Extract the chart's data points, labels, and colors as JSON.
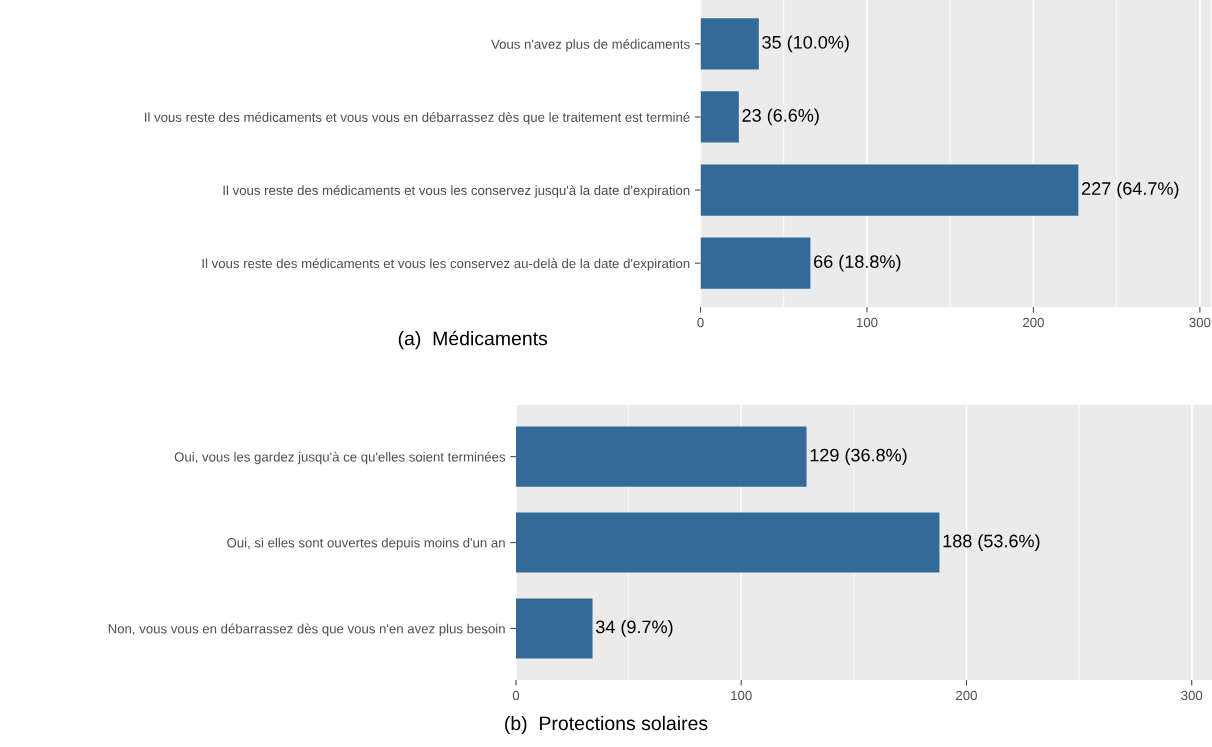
{
  "chart_data": [
    {
      "type": "bar",
      "orientation": "horizontal",
      "title": "(a)  Médicaments",
      "categories": [
        "Vous n'avez plus de médicaments",
        "Il vous reste des médicaments et vous vous en débarrassez dès que le traitement est terminé",
        "Il vous reste des médicaments et vous les conservez jusqu'à la date d'expiration",
        "Il vous reste des médicaments et vous les conservez au-delà de la date d'expiration"
      ],
      "values": [
        35,
        23,
        227,
        66
      ],
      "value_labels": [
        "35 (10.0%)",
        "23 (6.6%)",
        "227 (64.7%)",
        "66 (18.8%)"
      ],
      "color": "#336a98",
      "xlim": [
        0,
        307
      ],
      "xticks": [
        0,
        100,
        200,
        300
      ],
      "grid": "x",
      "legend": false
    },
    {
      "type": "bar",
      "orientation": "horizontal",
      "title": "(b)  Protections solaires",
      "categories": [
        "Oui, vous les gardez jusqu'à ce qu'elles soient terminées",
        "Oui, si elles sont ouvertes depuis moins d'un an",
        "Non, vous vous en débarrassez dès que vous n'en avez plus besoin"
      ],
      "values": [
        129,
        188,
        34
      ],
      "value_labels": [
        "129 (36.8%)",
        "188 (53.6%)",
        "34 (9.7%)"
      ],
      "color": "#336a98",
      "xlim": [
        0,
        309
      ],
      "xticks": [
        0,
        100,
        200,
        300
      ],
      "grid": "x",
      "legend": false
    }
  ]
}
